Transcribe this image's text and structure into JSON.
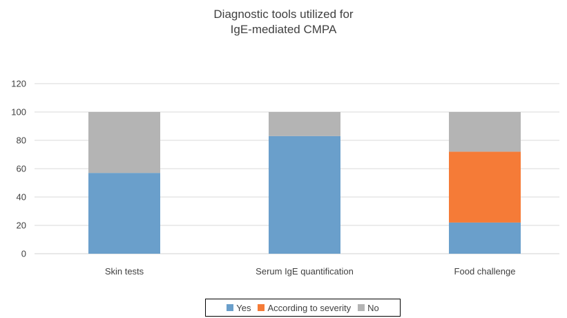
{
  "chart_data": {
    "type": "bar",
    "stacked": true,
    "title_lines": [
      "Diagnostic tools utilized for",
      "IgE-mediated CMPA"
    ],
    "categories": [
      "Skin tests",
      "Serum IgE quantification",
      "Food challenge"
    ],
    "series": [
      {
        "name": "Yes",
        "color": "#6a9fcb",
        "values": [
          57,
          83,
          22
        ]
      },
      {
        "name": "According to severity",
        "color": "#f57b37",
        "values": [
          0,
          0,
          50
        ]
      },
      {
        "name": "No",
        "color": "#b4b4b4",
        "values": [
          43,
          17,
          28
        ]
      }
    ],
    "y_ticks": [
      "0",
      "20",
      "40",
      "60",
      "80",
      "100",
      "120"
    ],
    "ylim": [
      0,
      120
    ],
    "grid": true,
    "legend_position": "bottom",
    "xlabel": "",
    "ylabel": ""
  }
}
